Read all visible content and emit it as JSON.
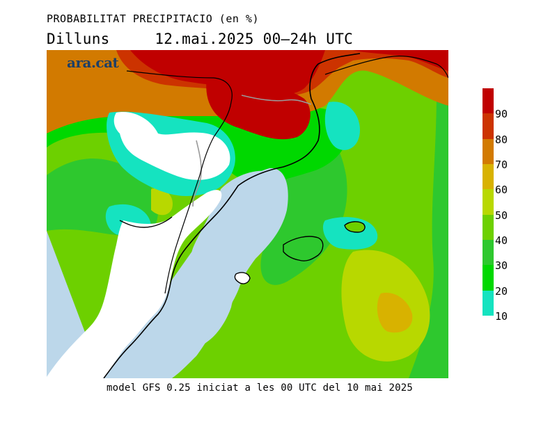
{
  "header": {
    "title": "PROBABILITAT PRECIPITACIO (en %)",
    "subtitle_day": "Dilluns",
    "subtitle_range": "12.mai.2025 00—24h UTC"
  },
  "logo": {
    "text": "ara.cat"
  },
  "footer": {
    "text": "model GFS 0.25 iniciat a les 00 UTC del 10 mai 2025"
  },
  "legend": {
    "labels": [
      "90",
      "80",
      "70",
      "60",
      "50",
      "40",
      "30",
      "20",
      "10"
    ],
    "colors": [
      "#c00000",
      "#cc3300",
      "#d27a00",
      "#d8b200",
      "#b8d800",
      "#6dd000",
      "#2ec82e",
      "#00d800",
      "#15e3c0"
    ]
  },
  "map_colors": {
    "sea": "#bcd7ea",
    "land_no_data": "#ffffff",
    "coast": "#000000",
    "border": "#9a9a9a"
  }
}
